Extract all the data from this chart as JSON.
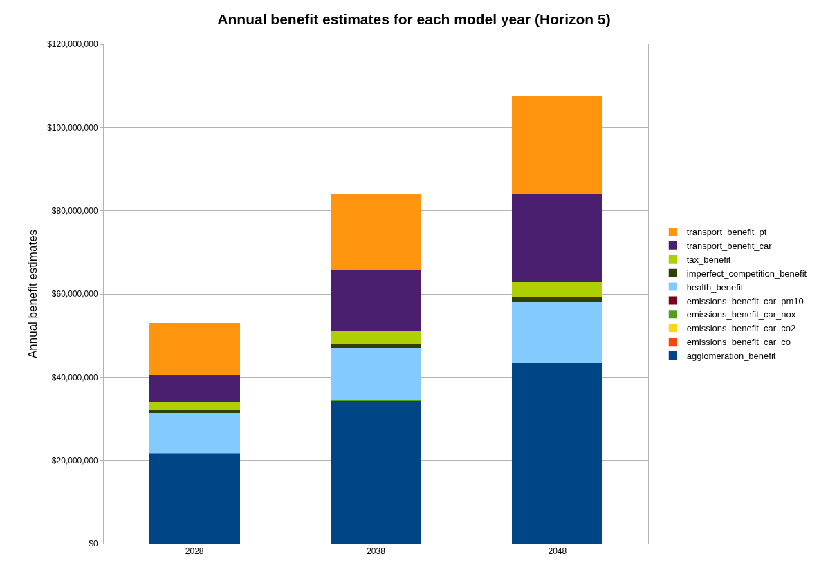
{
  "chart_data": {
    "type": "bar",
    "title": "Annual benefit estimates for each model year (Horizon 5)",
    "ylabel": "Annual benefit estimates",
    "categories": [
      "2028",
      "2038",
      "2048"
    ],
    "stacked": true,
    "grid": "y",
    "legend": "right",
    "ylim": [
      0,
      120000000
    ],
    "yticks": [
      {
        "value": 0,
        "label": "$0"
      },
      {
        "value": 20000000,
        "label": "$20,000,000"
      },
      {
        "value": 40000000,
        "label": "$40,000,000"
      },
      {
        "value": 60000000,
        "label": "$60,000,000"
      },
      {
        "value": 80000000,
        "label": "$80,000,000"
      },
      {
        "value": 100000000,
        "label": "$100,000,000"
      },
      {
        "value": 120000000,
        "label": "$120,000,000"
      }
    ],
    "series": [
      {
        "name": "agglomeration_benefit",
        "color": "#004586",
        "values": [
          21500000,
          34300000,
          43400000
        ]
      },
      {
        "name": "emissions_benefit_car_co",
        "color": "#ff420e",
        "values": [
          0,
          0,
          0
        ]
      },
      {
        "name": "emissions_benefit_car_co2",
        "color": "#ffd320",
        "values": [
          0,
          0,
          0
        ]
      },
      {
        "name": "emissions_benefit_car_nox",
        "color": "#579d1c",
        "values": [
          200000,
          200000,
          0
        ]
      },
      {
        "name": "emissions_benefit_car_pm10",
        "color": "#7e0021",
        "values": [
          0,
          100000,
          0
        ]
      },
      {
        "name": "health_benefit",
        "color": "#83caff",
        "values": [
          9700000,
          12500000,
          14700000
        ]
      },
      {
        "name": "imperfect_competition_benefit",
        "color": "#314004",
        "values": [
          600000,
          1000000,
          1200000
        ]
      },
      {
        "name": "tax_benefit",
        "color": "#aecf00",
        "values": [
          2100000,
          2900000,
          3500000
        ]
      },
      {
        "name": "transport_benefit_car",
        "color": "#4b1f6f",
        "values": [
          6400000,
          14800000,
          21300000
        ]
      },
      {
        "name": "transport_benefit_pt",
        "color": "#ff950e",
        "values": [
          12500000,
          18300000,
          23500000
        ]
      }
    ]
  }
}
